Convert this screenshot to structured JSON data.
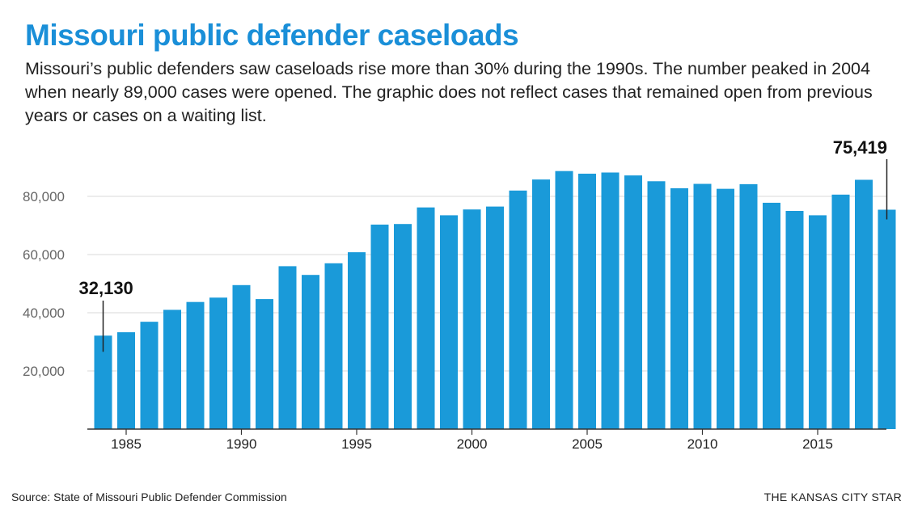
{
  "header": {
    "title": "Missouri public defender caseloads",
    "subtitle": "Missouri’s public defenders saw caseloads rise more than 30% during the 1990s. The number peaked in 2004 when nearly 89,000 cases were opened. The graphic does not reflect cases that remained open from previous years or cases on a waiting list."
  },
  "footer": {
    "source": "Source: State of Missouri Public Defender Commission",
    "brand": "THE KANSAS CITY STAR"
  },
  "colors": {
    "bar": "#1a9ad9",
    "title": "#1a8fd8",
    "grid": "#d9d9d9"
  },
  "chart_data": {
    "type": "bar",
    "title": "",
    "xlabel": "",
    "ylabel": "",
    "ylim": [
      0,
      95000
    ],
    "yticks": [
      20000,
      40000,
      60000,
      80000
    ],
    "ytick_labels": [
      "20,000",
      "40,000",
      "60,000",
      "80,000"
    ],
    "xticks": [
      1985,
      1990,
      1995,
      2000,
      2005,
      2010,
      2015
    ],
    "xtick_labels": [
      "1985",
      "1990",
      "1995",
      "2000",
      "2005",
      "2010",
      "2015"
    ],
    "grid": true,
    "categories": [
      1984,
      1985,
      1986,
      1987,
      1988,
      1989,
      1990,
      1991,
      1992,
      1993,
      1994,
      1995,
      1996,
      1997,
      1998,
      1999,
      2000,
      2001,
      2002,
      2003,
      2004,
      2005,
      2006,
      2007,
      2008,
      2009,
      2010,
      2011,
      2012,
      2013,
      2014,
      2015,
      2016,
      2017,
      2018
    ],
    "values": [
      32130,
      33300,
      36900,
      41000,
      43700,
      45200,
      49500,
      44700,
      56000,
      53000,
      57000,
      60800,
      70300,
      70500,
      76200,
      73500,
      75500,
      76500,
      82000,
      85800,
      88700,
      87800,
      88200,
      87200,
      85200,
      82800,
      84300,
      82600,
      84200,
      77800,
      75000,
      73500,
      80600,
      85700,
      75419
    ],
    "annotations": [
      {
        "category": 1984,
        "label": "32,130"
      },
      {
        "category": 2018,
        "label": "75,419"
      }
    ]
  }
}
